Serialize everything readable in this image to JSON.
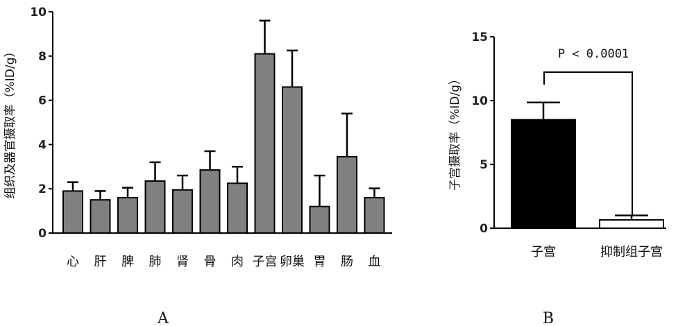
{
  "chart_data": [
    {
      "type": "bar",
      "panel_label": "A",
      "ylabel": "组织及器官摄取率（%ID/g）",
      "ylim": [
        0,
        10
      ],
      "yticks": [
        "0",
        "2",
        "4",
        "6",
        "8",
        "10"
      ],
      "categories": [
        "心",
        "肝",
        "脾",
        "肺",
        "肾",
        "骨",
        "肉",
        "子宫",
        "卵巢",
        "胃",
        "肠",
        "血"
      ],
      "values": [
        1.9,
        1.5,
        1.6,
        2.35,
        1.95,
        2.85,
        2.25,
        8.1,
        6.6,
        1.2,
        3.45,
        1.6
      ],
      "errors": [
        0.4,
        0.4,
        0.45,
        0.85,
        0.65,
        0.85,
        0.75,
        1.5,
        1.65,
        1.4,
        1.95,
        0.42
      ],
      "bar_color": "#808080"
    },
    {
      "type": "bar",
      "panel_label": "B",
      "ylabel": "子宫摄取率（%ID/g）",
      "ylim": [
        0,
        15
      ],
      "yticks": [
        "0",
        "5",
        "10",
        "15"
      ],
      "categories": [
        "子宫",
        "抑制组子宫"
      ],
      "values": [
        8.5,
        0.65
      ],
      "errors": [
        1.35,
        0.35
      ],
      "bar_colors": [
        "#000000",
        "#ffffff"
      ],
      "annotation": "P < 0.0001"
    }
  ]
}
